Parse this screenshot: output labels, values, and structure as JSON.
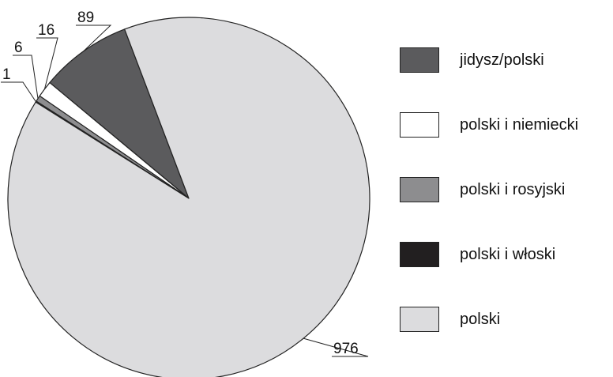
{
  "chart_data": {
    "type": "pie",
    "title": "",
    "slices": [
      {
        "label": "jidysz/polski",
        "value": 89,
        "data_label": "89",
        "color": "#5b5b5d"
      },
      {
        "label": "polski i niemiecki",
        "value": 16,
        "data_label": "16",
        "color": "#ffffff"
      },
      {
        "label": "polski i rosyjski",
        "value": 6,
        "data_label": "6",
        "color": "#8d8d8f"
      },
      {
        "label": "polski i włoski",
        "value": 1,
        "data_label": "1",
        "color": "#221f20"
      },
      {
        "label": "polski",
        "value": 976,
        "data_label": "976",
        "color": "#dcdcde"
      }
    ],
    "legend_position": "right",
    "edge_color": "#222222"
  }
}
